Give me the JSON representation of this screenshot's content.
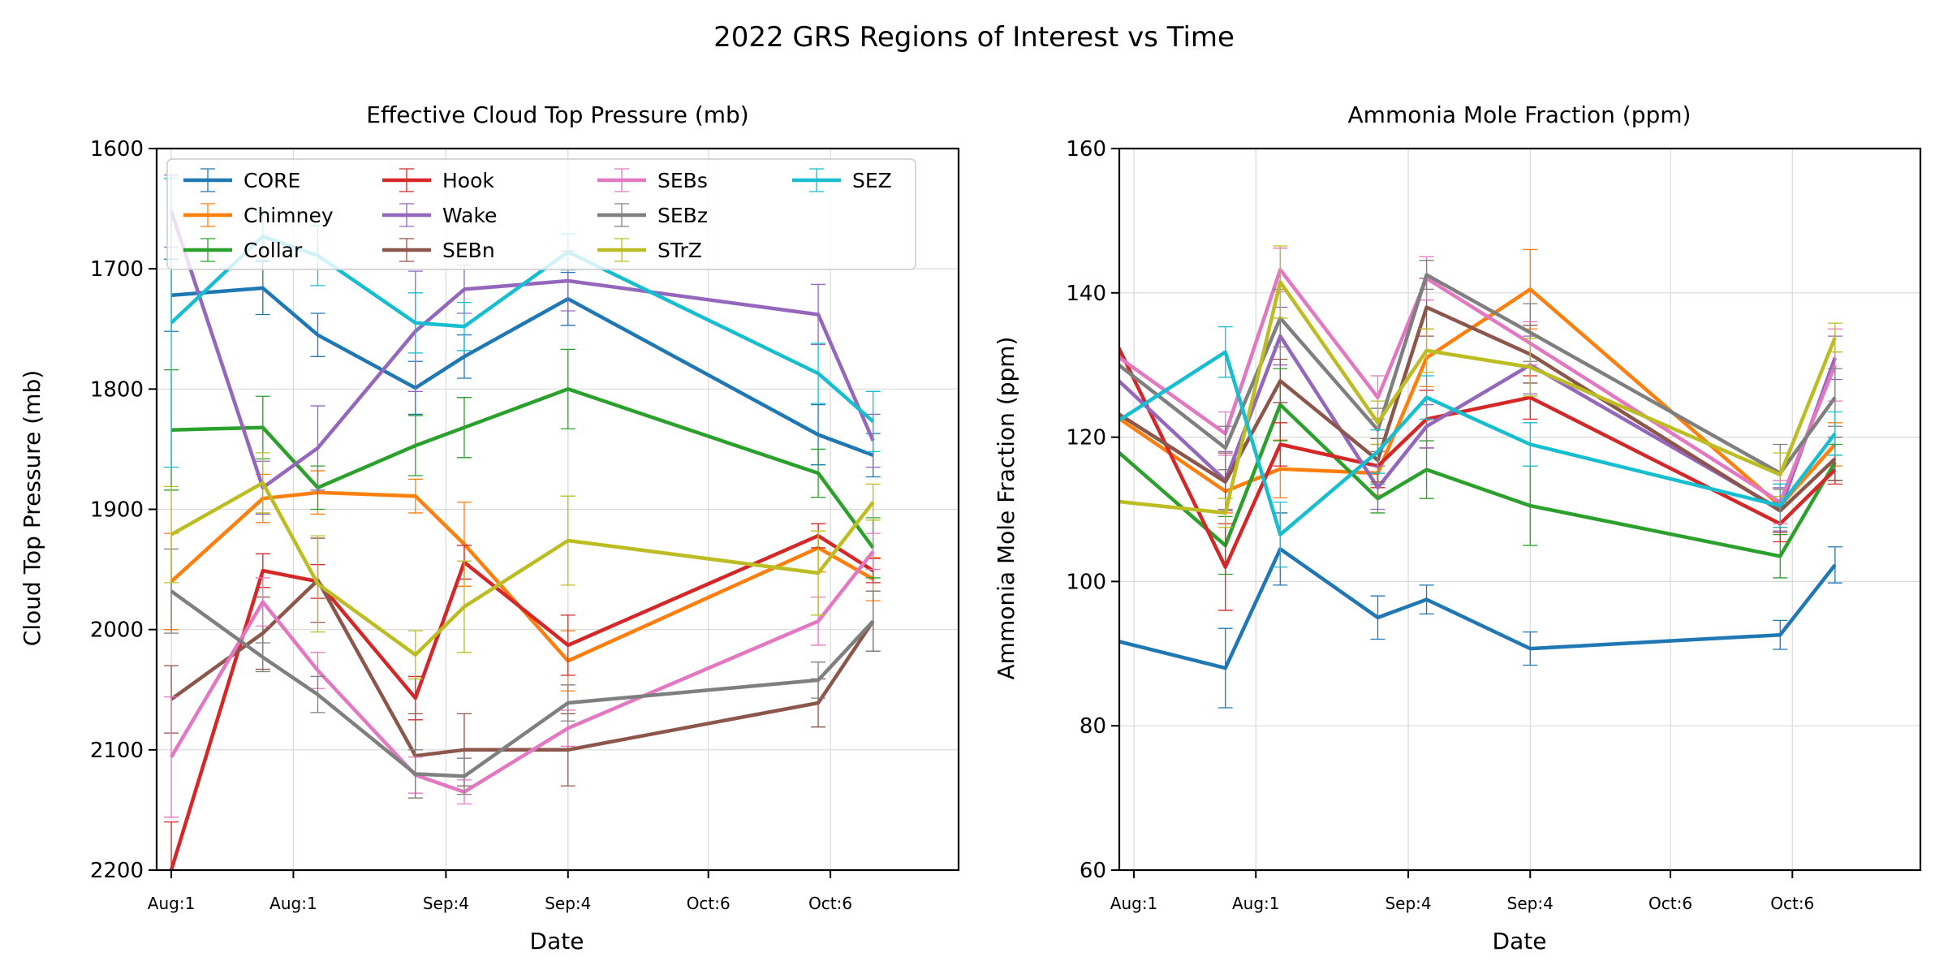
{
  "figure_title": "2022 GRS Regions of Interest vs Time",
  "colors": {
    "CORE": "#1f77b4",
    "Chimney": "#ff7f0e",
    "Collar": "#2ca02c",
    "Hook": "#d62728",
    "Wake": "#9467bd",
    "SEBn": "#8c564b",
    "SEBs": "#e377c2",
    "SEBz": "#7f7f7f",
    "STrZ": "#bcbd22",
    "SEZ": "#17becf",
    "grid": "#d9d9d9"
  },
  "chart_data": [
    {
      "type": "line",
      "title": "Effective Cloud Top Pressure (mb)",
      "xlabel": "Date",
      "ylabel": "Cloud Top Pressure (mb)",
      "ylim": [
        1600,
        2200
      ],
      "y_inverted": true,
      "xlim": [
        -0.12,
        6.45
      ],
      "yticks": [
        1600,
        1700,
        1800,
        1900,
        2000,
        2100,
        2200
      ],
      "xticks": [
        0,
        1,
        2.25,
        3.25,
        4.4,
        5.4
      ],
      "xticklabels": [
        "Aug:1",
        "Aug:1",
        "Sep:4",
        "Sep:4",
        "Oct:6",
        "Oct:6"
      ],
      "legend": "upper",
      "x": [
        0,
        0.75,
        1.2,
        2.0,
        2.4,
        3.25,
        5.3,
        5.75
      ],
      "series": [
        {
          "name": "CORE",
          "values": [
            1722,
            1716,
            1755,
            1799,
            1773,
            1725,
            1838,
            1855
          ],
          "errors": [
            30,
            22,
            18,
            22,
            18,
            22,
            25,
            18
          ]
        },
        {
          "name": "Chimney",
          "values": [
            1960,
            1891,
            1886,
            1889,
            1929,
            2026,
            1932,
            1958
          ],
          "errors": [
            40,
            20,
            18,
            14,
            35,
            25,
            20,
            18
          ]
        },
        {
          "name": "Collar",
          "values": [
            1834,
            1832,
            1882,
            1847,
            1832,
            1800,
            1870,
            1932
          ],
          "errors": [
            50,
            26,
            18,
            25,
            25,
            33,
            20,
            25
          ]
        },
        {
          "name": "Hook",
          "values": [
            2200,
            1951,
            1960,
            2057,
            1944,
            2013,
            1922,
            1951
          ],
          "errors": [
            40,
            14,
            14,
            18,
            14,
            25,
            10,
            10
          ]
        },
        {
          "name": "Wake",
          "values": [
            1652,
            1882,
            1849,
            1752,
            1717,
            1710,
            1738,
            1843
          ],
          "errors": [
            30,
            22,
            35,
            50,
            20,
            25,
            25,
            22
          ]
        },
        {
          "name": "SEBn",
          "values": [
            2058,
            2003,
            1959,
            2105,
            2100,
            2100,
            2061,
            1993
          ],
          "errors": [
            28,
            30,
            35,
            35,
            30,
            30,
            20,
            25
          ]
        },
        {
          "name": "SEBs",
          "values": [
            2106,
            1977,
            2034,
            2121,
            2135,
            2082,
            1993,
            1935
          ],
          "errors": [
            50,
            20,
            15,
            15,
            10,
            15,
            20,
            15
          ]
        },
        {
          "name": "SEBz",
          "values": [
            1968,
            2023,
            2054,
            2120,
            2122,
            2061,
            2042,
            1993
          ],
          "errors": [
            35,
            12,
            15,
            20,
            15,
            15,
            15,
            25
          ]
        },
        {
          "name": "STrZ",
          "values": [
            1921,
            1878,
            1962,
            2021,
            1981,
            1926,
            1953,
            1894
          ],
          "errors": [
            40,
            25,
            40,
            20,
            38,
            37,
            35,
            15
          ]
        },
        {
          "name": "SEZ",
          "values": [
            1745,
            1673,
            1689,
            1745,
            1748,
            1686,
            1787,
            1827
          ],
          "errors": [
            120,
            20,
            25,
            25,
            20,
            15,
            25,
            25
          ]
        }
      ]
    },
    {
      "type": "line",
      "title": "Ammonia Mole Fraction (ppm)",
      "xlabel": "Date",
      "ylabel": "Ammonia Mole Fraction (ppm)",
      "ylim": [
        60,
        160
      ],
      "y_inverted": false,
      "xlim": [
        -0.12,
        6.45
      ],
      "yticks": [
        60,
        80,
        100,
        120,
        140,
        160
      ],
      "xticks": [
        0,
        1,
        2.25,
        3.25,
        4.4,
        5.4
      ],
      "xticklabels": [
        "Aug:1",
        "Aug:1",
        "Sep:4",
        "Sep:4",
        "Oct:6",
        "Oct:6"
      ],
      "x": [
        -0.2,
        0.75,
        1.2,
        2.0,
        2.4,
        3.25,
        5.3,
        5.75
      ],
      "series": [
        {
          "name": "CORE",
          "values": [
            92,
            88,
            104.5,
            95,
            97.5,
            90.7,
            92.6,
            102.3
          ],
          "errors": [
            3.5,
            5.5,
            5,
            3,
            2,
            2.3,
            2,
            2.5
          ]
        },
        {
          "name": "Chimney",
          "values": [
            123.5,
            112.5,
            115.6,
            115,
            131,
            140.5,
            110.5,
            119
          ],
          "errors": [
            5,
            3,
            4,
            3,
            4,
            5.5,
            3,
            3
          ]
        },
        {
          "name": "Collar",
          "values": [
            119,
            105,
            124.5,
            111.5,
            115.5,
            110.5,
            103.5,
            116.5
          ],
          "errors": [
            6,
            4,
            5,
            2,
            4,
            5.5,
            3,
            2.5
          ]
        },
        {
          "name": "Hook",
          "values": [
            135,
            102,
            119,
            116,
            122.5,
            125.5,
            108,
            115.5
          ],
          "errors": [
            2.5,
            6,
            3,
            3,
            4,
            3,
            2.5,
            2
          ]
        },
        {
          "name": "Wake",
          "values": [
            129,
            114,
            134,
            113,
            121.5,
            130,
            110,
            131
          ],
          "errors": [
            4,
            4,
            4,
            3,
            3,
            4,
            3,
            3
          ]
        },
        {
          "name": "SEBn",
          "values": [
            124,
            113.8,
            127.8,
            116.8,
            138,
            131.5,
            109.8,
            117
          ],
          "errors": [
            4,
            4,
            3,
            3,
            4,
            4,
            3,
            3
          ]
        },
        {
          "name": "SEBs",
          "values": [
            132,
            120.5,
            143.2,
            125.5,
            142,
            133,
            111,
            130
          ],
          "errors": [
            5,
            3,
            3,
            3,
            3,
            3,
            3,
            5
          ]
        },
        {
          "name": "SEBz",
          "values": [
            131,
            118.5,
            136.5,
            121,
            142.5,
            134.5,
            115,
            125.5
          ],
          "errors": [
            4,
            3,
            4,
            3,
            2,
            4,
            4,
            4
          ]
        },
        {
          "name": "STrZ",
          "values": [
            111.2,
            109.5,
            141.5,
            122,
            132,
            129.7,
            114.8,
            133.8
          ],
          "errors": [
            6,
            2,
            5,
            3,
            3,
            4,
            3,
            2
          ]
        },
        {
          "name": "SEZ",
          "values": [
            121.5,
            131.8,
            106.5,
            118,
            125.5,
            119,
            110.5,
            120.5
          ],
          "errors": [
            6,
            3.5,
            4.5,
            3,
            3,
            3,
            3,
            3
          ]
        }
      ]
    }
  ]
}
